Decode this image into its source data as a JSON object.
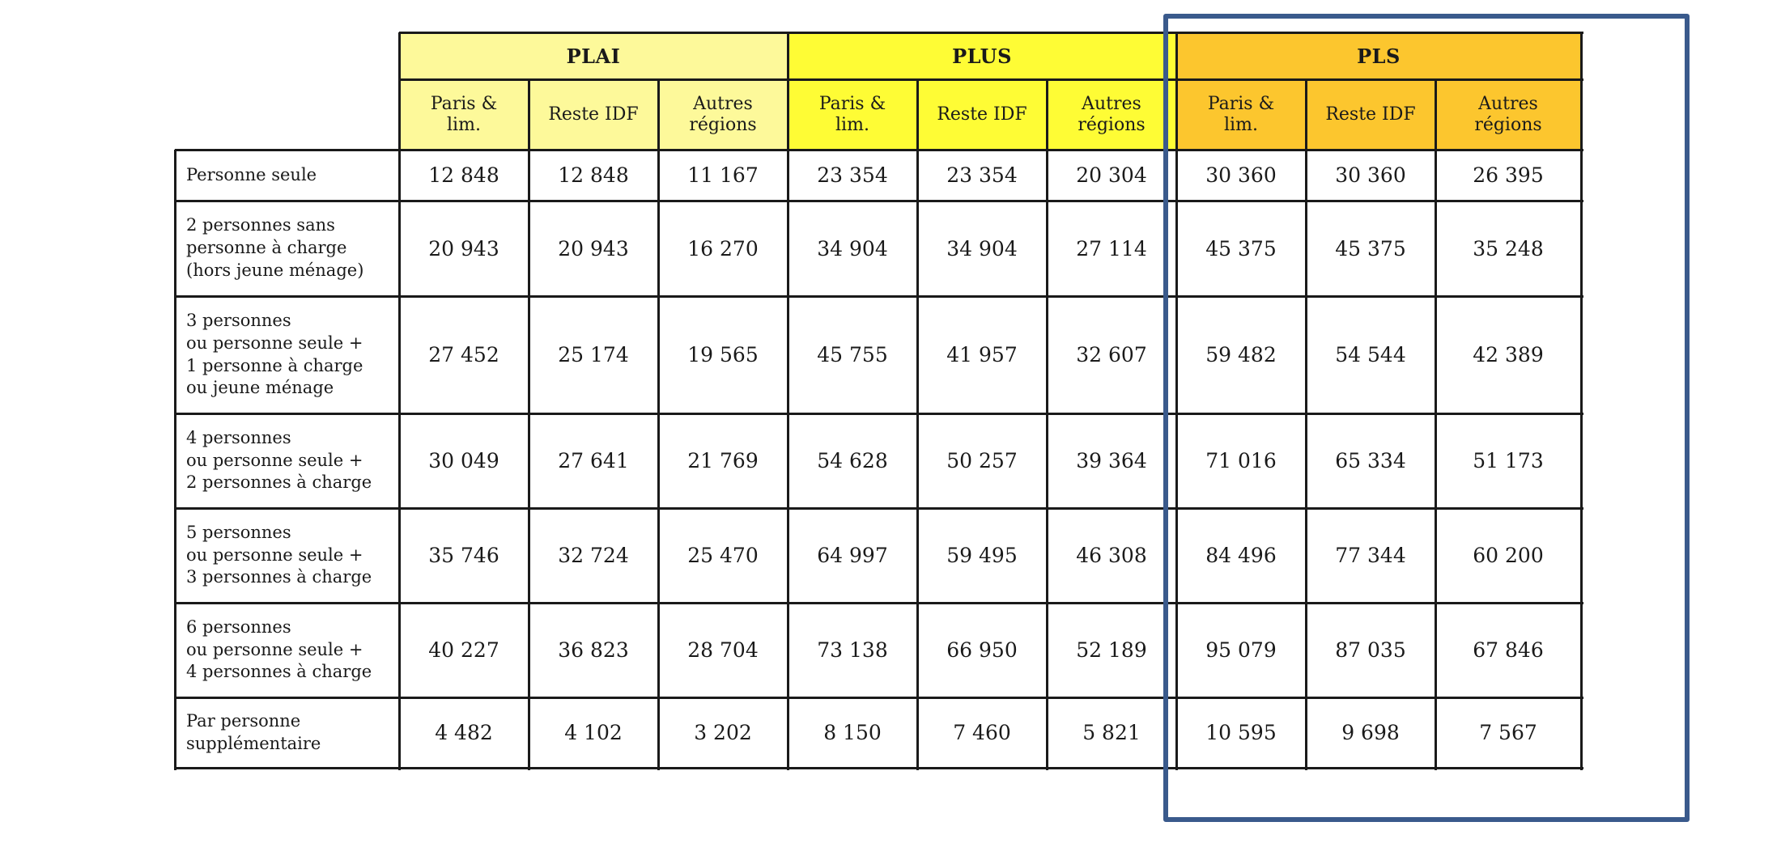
{
  "groups": [
    {
      "label": "PLAI",
      "color": "#fdf99a"
    },
    {
      "label": "PLUS",
      "color": "#fefc35"
    },
    {
      "label": "PLS",
      "color": "#fcc62e"
    }
  ],
  "sub_headers": [
    "Paris &\nlim.",
    "Reste IDF",
    "Autres\nrégions"
  ],
  "rows": [
    {
      "label": "Personne seule",
      "values": [
        "12 848",
        "12 848",
        "11 167",
        "23 354",
        "23 354",
        "20 304",
        "30 360",
        "30 360",
        "26 395"
      ]
    },
    {
      "label": "2 personnes sans\npersonne à charge\n(hors jeune ménage)",
      "values": [
        "20 943",
        "20 943",
        "16 270",
        "34 904",
        "34 904",
        "27 114",
        "45 375",
        "45 375",
        "35 248"
      ]
    },
    {
      "label": "3 personnes\nou personne seule +\n1 personne à charge\nou jeune ménage",
      "values": [
        "27 452",
        "25 174",
        "19 565",
        "45 755",
        "41 957",
        "32 607",
        "59 482",
        "54 544",
        "42 389"
      ]
    },
    {
      "label": "4 personnes\nou personne seule +\n2 personnes à charge",
      "values": [
        "30 049",
        "27 641",
        "21 769",
        "54 628",
        "50 257",
        "39 364",
        "71 016",
        "65 334",
        "51 173"
      ]
    },
    {
      "label": "5 personnes\nou personne seule +\n3 personnes à charge",
      "values": [
        "35 746",
        "32 724",
        "25 470",
        "64 997",
        "59 495",
        "46 308",
        "84 496",
        "77 344",
        "60 200"
      ]
    },
    {
      "label": "6 personnes\nou personne seule +\n4 personnes à charge",
      "values": [
        "40 227",
        "36 823",
        "28 704",
        "73 138",
        "66 950",
        "52 189",
        "95 079",
        "87 035",
        "67 846"
      ]
    },
    {
      "label": "Par personne\nsupplémentaire",
      "values": [
        "4 482",
        "4 102",
        "3 202",
        "8 150",
        "7 460",
        "5 821",
        "10 595",
        "9 698",
        "7 567"
      ]
    }
  ],
  "highlight": {
    "color": "#3a5a8c"
  }
}
